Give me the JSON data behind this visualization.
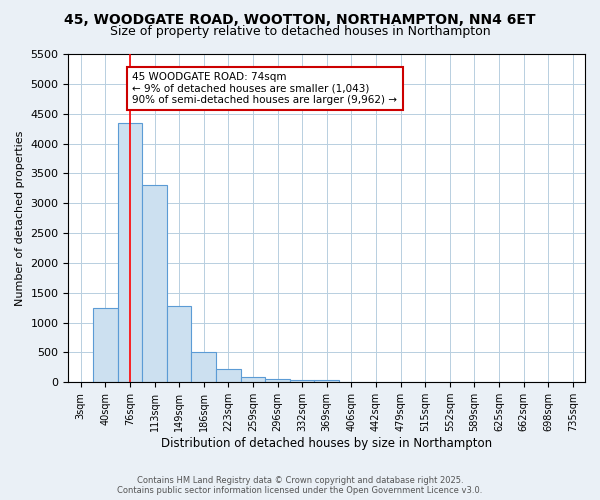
{
  "title1": "45, WOODGATE ROAD, WOOTTON, NORTHAMPTON, NN4 6ET",
  "title2": "Size of property relative to detached houses in Northampton",
  "xlabel": "Distribution of detached houses by size in Northampton",
  "ylabel": "Number of detached properties",
  "categories": [
    "3sqm",
    "40sqm",
    "76sqm",
    "113sqm",
    "149sqm",
    "186sqm",
    "223sqm",
    "259sqm",
    "296sqm",
    "332sqm",
    "369sqm",
    "406sqm",
    "442sqm",
    "479sqm",
    "515sqm",
    "552sqm",
    "589sqm",
    "625sqm",
    "662sqm",
    "698sqm",
    "735sqm"
  ],
  "values": [
    0,
    1250,
    4350,
    3300,
    1280,
    500,
    220,
    80,
    50,
    30,
    40,
    0,
    0,
    0,
    0,
    0,
    0,
    0,
    0,
    0,
    0
  ],
  "bar_color": "#cce0f0",
  "bar_edge_color": "#5b9bd5",
  "red_line_index": 2,
  "ylim": [
    0,
    5500
  ],
  "yticks": [
    0,
    500,
    1000,
    1500,
    2000,
    2500,
    3000,
    3500,
    4000,
    4500,
    5000,
    5500
  ],
  "annotation_title": "45 WOODGATE ROAD: 74sqm",
  "annotation_line1": "← 9% of detached houses are smaller (1,043)",
  "annotation_line2": "90% of semi-detached houses are larger (9,962) →",
  "annotation_box_color": "#ffffff",
  "annotation_box_edge": "#cc0000",
  "footer1": "Contains HM Land Registry data © Crown copyright and database right 2025.",
  "footer2": "Contains public sector information licensed under the Open Government Licence v3.0.",
  "bg_color": "#eaf0f6",
  "plot_bg_color": "#ffffff",
  "grid_color": "#b8cfe0",
  "title_fontsize": 10,
  "subtitle_fontsize": 9
}
